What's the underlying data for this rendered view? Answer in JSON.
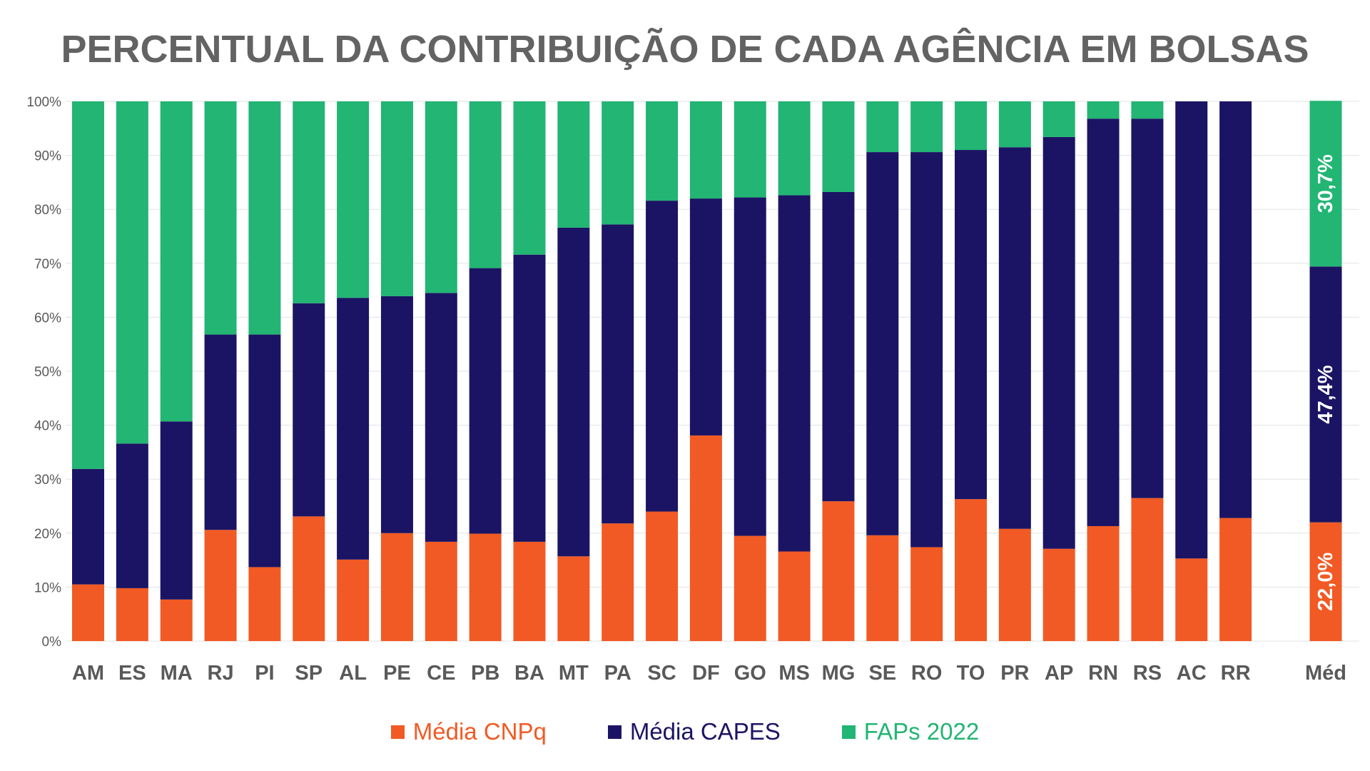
{
  "chart_data": {
    "type": "bar",
    "stacked": true,
    "title": "PERCENTUAL DA CONTRIBUIÇÃO DE CADA AGÊNCIA EM BOLSAS",
    "categories": [
      "AM",
      "ES",
      "MA",
      "RJ",
      "PI",
      "SP",
      "AL",
      "PE",
      "CE",
      "PB",
      "BA",
      "MT",
      "PA",
      "SC",
      "DF",
      "GO",
      "MS",
      "MG",
      "SE",
      "RO",
      "TO",
      "PR",
      "AP",
      "RN",
      "RS",
      "AC",
      "RR",
      "Méd"
    ],
    "ylim": [
      0,
      100
    ],
    "yticks": [
      "0%",
      "10%",
      "20%",
      "30%",
      "40%",
      "50%",
      "60%",
      "70%",
      "80%",
      "90%",
      "100%"
    ],
    "grid": true,
    "legend_position": "bottom",
    "colors": {
      "cnpq": "#F15A24",
      "capes": "#1B1464",
      "faps": "#22B573"
    },
    "series": [
      {
        "name": "Média CNPq",
        "values": [
          10.5,
          9.8,
          7.7,
          20.6,
          13.7,
          23.1,
          15.1,
          20.0,
          18.4,
          19.9,
          18.4,
          15.7,
          21.8,
          24.0,
          38.1,
          19.5,
          16.6,
          25.9,
          19.6,
          17.4,
          26.3,
          20.8,
          17.1,
          21.3,
          26.5,
          15.3,
          22.8,
          22.0
        ]
      },
      {
        "name": "Média CAPES",
        "values": [
          21.4,
          26.8,
          33.0,
          36.2,
          43.1,
          39.5,
          48.5,
          43.9,
          46.1,
          49.2,
          53.2,
          60.9,
          55.4,
          57.6,
          43.9,
          62.7,
          66.0,
          57.3,
          71.0,
          73.2,
          64.7,
          70.7,
          76.3,
          75.5,
          70.3,
          84.7,
          77.2,
          47.4
        ]
      },
      {
        "name": "FAPs 2022",
        "values": [
          68.1,
          63.4,
          59.3,
          43.2,
          43.2,
          37.4,
          36.4,
          36.1,
          35.5,
          30.9,
          28.4,
          23.4,
          22.8,
          18.4,
          18.0,
          17.8,
          17.4,
          16.8,
          9.4,
          9.4,
          9.0,
          8.5,
          6.6,
          3.2,
          3.2,
          0,
          0,
          30.7
        ]
      }
    ],
    "data_labels": {
      "Méd": [
        "22,0%",
        "47,4%",
        "30,7%"
      ]
    }
  }
}
